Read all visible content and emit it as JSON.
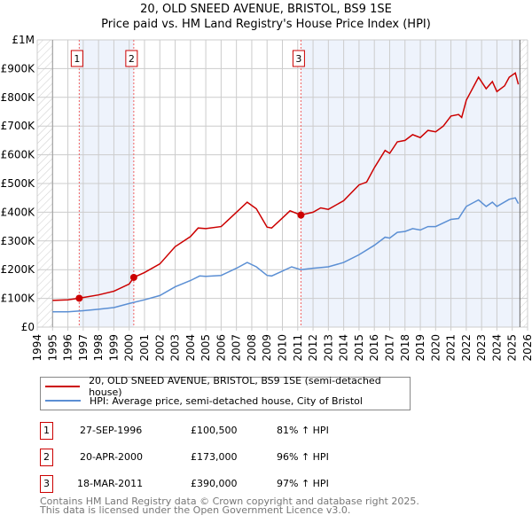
{
  "chart_data": {
    "type": "line",
    "title": "20, OLD SNEED AVENUE, BRISTOL, BS9 1SE",
    "subtitle": "Price paid vs. HM Land Registry's House Price Index (HPI)",
    "xlim": [
      1994,
      2026
    ],
    "ylim": [
      0,
      1000000
    ],
    "x_ticks": [
      "1994",
      "1995",
      "1996",
      "1997",
      "1998",
      "1999",
      "2000",
      "2001",
      "2002",
      "2003",
      "2004",
      "2005",
      "2006",
      "2007",
      "2008",
      "2009",
      "2010",
      "2011",
      "2012",
      "2013",
      "2014",
      "2015",
      "2016",
      "2017",
      "2018",
      "2019",
      "2020",
      "2021",
      "2022",
      "2023",
      "2024",
      "2025",
      "2026"
    ],
    "y_ticks": [
      {
        "v": 0,
        "l": "£0"
      },
      {
        "v": 100000,
        "l": "£100K"
      },
      {
        "v": 200000,
        "l": "£200K"
      },
      {
        "v": 300000,
        "l": "£300K"
      },
      {
        "v": 400000,
        "l": "£400K"
      },
      {
        "v": 500000,
        "l": "£500K"
      },
      {
        "v": 600000,
        "l": "£600K"
      },
      {
        "v": 700000,
        "l": "£700K"
      },
      {
        "v": 800000,
        "l": "£800K"
      },
      {
        "v": 900000,
        "l": "£900K"
      },
      {
        "v": 1000000,
        "l": "£1M"
      }
    ],
    "series": [
      {
        "name": "20, OLD SNEED AVENUE, BRISTOL, BS9 1SE (semi-detached house)",
        "color": "#cc0000",
        "x": [
          1995,
          1996,
          1996.74,
          1997,
          1998,
          1999,
          2000,
          2000.3,
          2001,
          2002,
          2003,
          2004,
          2004.5,
          2005,
          2006,
          2007,
          2007.7,
          2008.3,
          2009,
          2009.3,
          2010,
          2010.5,
          2011.2,
          2012,
          2012.5,
          2013,
          2014,
          2015,
          2015.5,
          2016,
          2016.7,
          2017,
          2017.5,
          2018,
          2018.5,
          2019,
          2019.5,
          2020,
          2020.5,
          2021,
          2021.5,
          2021.7,
          2022,
          2022.3,
          2022.8,
          2023.3,
          2023.7,
          2024,
          2024.5,
          2024.8,
          2025.2,
          2025.4
        ],
        "y": [
          93000,
          95000,
          100500,
          103000,
          112000,
          125000,
          150000,
          173000,
          190000,
          220000,
          280000,
          315000,
          345000,
          343000,
          350000,
          400000,
          435000,
          412000,
          348000,
          345000,
          380000,
          405000,
          390000,
          400000,
          415000,
          410000,
          440000,
          495000,
          505000,
          555000,
          615000,
          605000,
          645000,
          650000,
          670000,
          660000,
          685000,
          680000,
          700000,
          735000,
          740000,
          730000,
          790000,
          820000,
          870000,
          830000,
          855000,
          820000,
          840000,
          870000,
          885000,
          845000
        ]
      },
      {
        "name": "HPI: Average price, semi-detached house, City of Bristol",
        "color": "#5b8fd4",
        "x": [
          1995,
          1996,
          1997,
          1998,
          1999,
          2000,
          2001,
          2002,
          2003,
          2004,
          2004.6,
          2005,
          2006,
          2007,
          2007.7,
          2008.3,
          2009,
          2009.3,
          2010,
          2010.6,
          2011.2,
          2012,
          2013,
          2014,
          2015,
          2016,
          2016.7,
          2017,
          2017.5,
          2018,
          2018.5,
          2019,
          2019.5,
          2020,
          2021,
          2021.5,
          2022,
          2022.8,
          2023.3,
          2023.7,
          2024,
          2024.8,
          2025.2,
          2025.4
        ],
        "y": [
          53000,
          53000,
          57000,
          62000,
          68000,
          82000,
          95000,
          110000,
          140000,
          162000,
          178000,
          177000,
          180000,
          205000,
          225000,
          210000,
          180000,
          178000,
          195000,
          210000,
          200000,
          205000,
          210000,
          225000,
          252000,
          285000,
          313000,
          310000,
          330000,
          333000,
          343000,
          338000,
          350000,
          350000,
          375000,
          378000,
          420000,
          443000,
          420000,
          435000,
          420000,
          445000,
          450000,
          430000
        ]
      }
    ],
    "sales": [
      {
        "n": "1",
        "x": 1996.74,
        "y": 100500,
        "date": "27-SEP-1996",
        "price": "£100,500",
        "hpi": "81% ↑ HPI"
      },
      {
        "n": "2",
        "x": 2000.3,
        "y": 173000,
        "date": "20-APR-2000",
        "price": "£173,000",
        "hpi": "96% ↑ HPI"
      },
      {
        "n": "3",
        "x": 2011.21,
        "y": 390000,
        "date": "18-MAR-2011",
        "price": "£390,000",
        "hpi": "97% ↑ HPI"
      }
    ],
    "data_end": 2025.5
  },
  "footer": [
    "Contains HM Land Registry data © Crown copyright and database right 2025.",
    "This data is licensed under the Open Government Licence v3.0."
  ]
}
